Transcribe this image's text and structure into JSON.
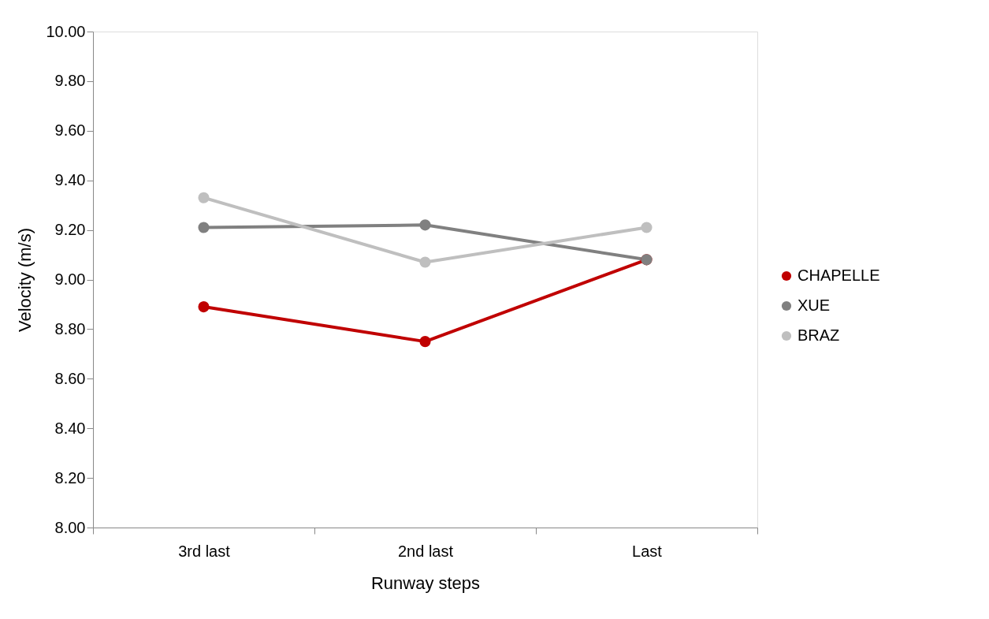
{
  "chart_data": {
    "type": "line",
    "xlabel": "Runway steps",
    "ylabel": "Velocity (m/s)",
    "categories": [
      "3rd last",
      "2nd last",
      "Last"
    ],
    "series": [
      {
        "name": "CHAPELLE",
        "color": "#c00000",
        "values": [
          8.89,
          8.75,
          9.08
        ]
      },
      {
        "name": "XUE",
        "color": "#808080",
        "values": [
          9.21,
          9.22,
          9.08
        ]
      },
      {
        "name": "BRAZ",
        "color": "#bfbfbf",
        "values": [
          9.33,
          9.07,
          9.21
        ]
      }
    ],
    "ylim": [
      8.0,
      10.0
    ],
    "yticks": [
      {
        "value": 8.0,
        "label": "8.00"
      },
      {
        "value": 8.2,
        "label": "8.20"
      },
      {
        "value": 8.4,
        "label": "8.40"
      },
      {
        "value": 8.6,
        "label": "8.60"
      },
      {
        "value": 8.8,
        "label": "8.80"
      },
      {
        "value": 9.0,
        "label": "9.00"
      },
      {
        "value": 9.2,
        "label": "9.20"
      },
      {
        "value": 9.4,
        "label": "9.40"
      },
      {
        "value": 9.6,
        "label": "9.60"
      },
      {
        "value": 9.8,
        "label": "9.80"
      },
      {
        "value": 10.0,
        "label": "10.00"
      }
    ],
    "grid": false,
    "legend": "right",
    "marker": "circle",
    "line_style": "solid"
  }
}
